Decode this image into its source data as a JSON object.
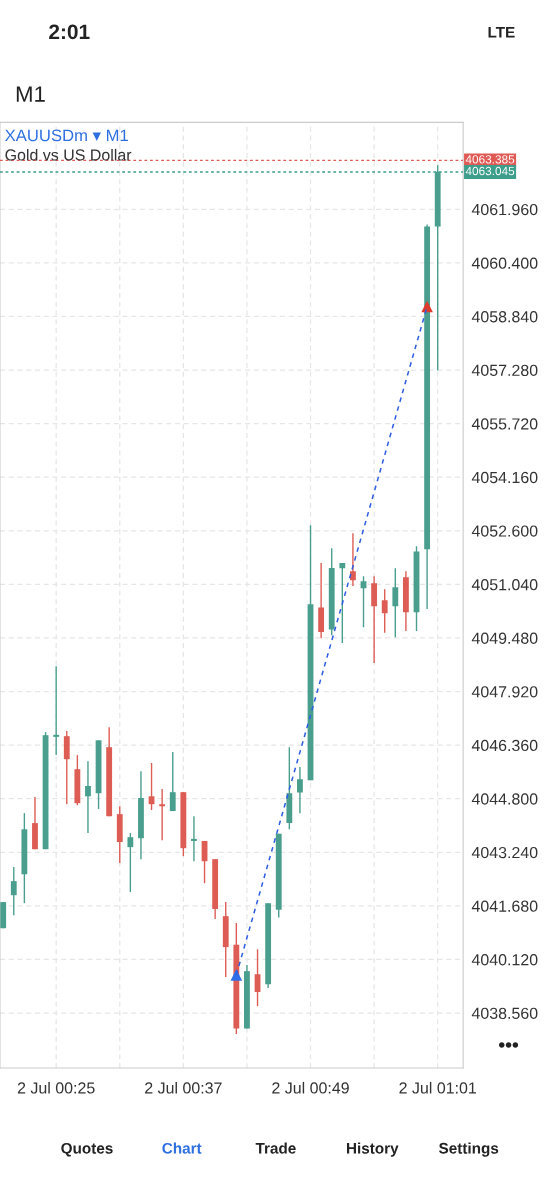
{
  "chart_data": {
    "type": "candlestick",
    "title": "XAUUSDm ▾ M1",
    "subtitle": "Gold vs US Dollar",
    "annotations": [
      "2:01",
      "LTE",
      "M1",
      "•••",
      "Quotes",
      "Chart",
      "Trade",
      "History",
      "Settings"
    ],
    "categories": [
      null,
      null,
      null,
      null,
      null,
      "2 Jul 00:25",
      null,
      null,
      null,
      null,
      null,
      null,
      null,
      null,
      null,
      null,
      null,
      "2 Jul 00:37",
      null,
      null,
      null,
      null,
      null,
      null,
      null,
      null,
      null,
      null,
      null,
      "2 Jul 00:49",
      null,
      null,
      null,
      null,
      null,
      null,
      null,
      null,
      null,
      null,
      null,
      "2 Jul 01:01"
    ],
    "ohlc": [
      [
        4041.03,
        4041.79,
        4041.03,
        4041.79
      ],
      [
        4041.99,
        4042.81,
        4041.41,
        4042.4
      ],
      [
        4042.6,
        4044.38,
        4041.76,
        4043.91
      ],
      [
        4044.09,
        4044.85,
        4043.33,
        4043.33
      ],
      [
        4043.33,
        4046.74,
        4043.33,
        4046.65
      ],
      [
        4046.6,
        4048.66,
        4046.07,
        4046.62
      ],
      [
        4046.62,
        4046.77,
        4044.64,
        4045.95
      ],
      [
        4045.66,
        4046.07,
        4044.61,
        4044.67
      ],
      [
        4044.87,
        4045.89,
        4043.8,
        4045.17
      ],
      [
        4044.96,
        4046.5,
        4044.5,
        4046.5
      ],
      [
        4046.3,
        4046.88,
        4044.29,
        4044.29
      ],
      [
        4044.35,
        4044.58,
        4042.93,
        4043.54
      ],
      [
        4043.39,
        4043.8,
        4042.08,
        4043.68
      ],
      [
        4043.65,
        4045.6,
        4043.04,
        4044.82
      ],
      [
        4044.87,
        4045.84,
        4044.47,
        4044.64
      ],
      [
        4044.6,
        4045.08,
        4043.59,
        4044.58
      ],
      [
        4044.44,
        4046.16,
        4044.44,
        4044.99
      ],
      [
        4044.99,
        4044.99,
        4043.13,
        4043.36
      ],
      [
        4043.57,
        4044.29,
        4042.98,
        4043.59
      ],
      [
        4043.57,
        4043.57,
        4042.34,
        4042.98
      ],
      [
        4043.04,
        4043.04,
        4041.3,
        4041.59
      ],
      [
        4041.38,
        4041.79,
        4039.61,
        4040.48
      ],
      [
        4040.55,
        4041.18,
        4037.95,
        4038.11
      ],
      [
        4038.11,
        4039.96,
        4038.11,
        4039.78
      ],
      [
        4039.69,
        4040.42,
        4038.76,
        4039.17
      ],
      [
        4039.4,
        4041.76,
        4039.29,
        4041.76
      ],
      [
        4041.57,
        4043.78,
        4041.34,
        4043.78
      ],
      [
        4044.09,
        4046.3,
        4043.91,
        4044.96
      ],
      [
        4044.98,
        4045.72,
        4044.38,
        4045.37
      ],
      [
        4045.34,
        4052.76,
        4045.34,
        4050.46
      ],
      [
        4050.37,
        4051.66,
        4049.47,
        4049.65
      ],
      [
        4049.73,
        4052.09,
        4049.56,
        4051.52
      ],
      [
        4051.51,
        4051.66,
        4049.33,
        4051.66
      ],
      [
        4051.42,
        4052.53,
        4050.99,
        4051.16
      ],
      [
        4050.93,
        4051.28,
        4049.79,
        4051.13
      ],
      [
        4051.07,
        4051.28,
        4048.75,
        4050.4
      ],
      [
        4050.58,
        4050.9,
        4049.63,
        4050.2
      ],
      [
        4050.4,
        4051.51,
        4049.5,
        4050.96
      ],
      [
        4051.25,
        4051.42,
        4049.68,
        4050.23
      ],
      [
        4050.23,
        4052.15,
        4049.68,
        4052.0
      ],
      [
        4052.06,
        4061.52,
        4050.32,
        4061.46
      ],
      [
        4061.46,
        4063.24,
        4057.27,
        4063.05
      ]
    ],
    "colors": [
      "#4a9e8e",
      "#4a9e8e",
      "#4a9e8e",
      "#dd5c54",
      "#4a9e8e",
      "#4a9e8e",
      "#dd5c54",
      "#dd5c54",
      "#4a9e8e",
      "#4a9e8e",
      "#dd5c54",
      "#dd5c54",
      "#4a9e8e",
      "#4a9e8e",
      "#dd5c54",
      "#dd5c54",
      "#4a9e8e",
      "#dd5c54",
      "#4a9e8e",
      "#dd5c54",
      "#dd5c54",
      "#dd5c54",
      "#dd5c54",
      "#4a9e8e",
      "#dd5c54",
      "#4a9e8e",
      "#4a9e8e",
      "#4a9e8e",
      "#4a9e8e",
      "#4a9e8e",
      "#dd5c54",
      "#4a9e8e",
      "#4a9e8e",
      "#dd5c54",
      "#4a9e8e",
      "#dd5c54",
      "#dd5c54",
      "#4a9e8e",
      "#dd5c54",
      "#4a9e8e",
      "#4a9e8e",
      "#4a9e8e"
    ],
    "series": [
      {
        "type": "line",
        "color": "#2f5fe0",
        "line_style": "dashed",
        "values": [
          null,
          null,
          null,
          null,
          null,
          null,
          null,
          null,
          null,
          null,
          null,
          null,
          null,
          null,
          null,
          null,
          null,
          null,
          null,
          null,
          null,
          null,
          4039.67,
          null,
          null,
          null,
          null,
          null,
          null,
          null,
          null,
          null,
          null,
          null,
          null,
          null,
          null,
          null,
          null,
          null,
          4059.13,
          null
        ]
      },
      {
        "type": "scatter",
        "color": "#2f6fe8",
        "marker": "triangle",
        "values": [
          null,
          null,
          null,
          null,
          null,
          null,
          null,
          null,
          null,
          null,
          null,
          null,
          null,
          null,
          null,
          null,
          null,
          null,
          null,
          null,
          null,
          null,
          4039.67,
          null,
          null,
          null,
          null,
          null,
          null,
          null,
          null,
          null,
          null,
          null,
          null,
          null,
          null,
          null,
          null,
          null,
          null,
          null
        ]
      },
      {
        "type": "scatter",
        "color": "#dd3c2c",
        "marker": "triangle",
        "values": [
          null,
          null,
          null,
          null,
          null,
          null,
          null,
          null,
          null,
          null,
          null,
          null,
          null,
          null,
          null,
          null,
          null,
          null,
          null,
          null,
          null,
          null,
          null,
          null,
          null,
          null,
          null,
          null,
          null,
          null,
          null,
          null,
          null,
          null,
          null,
          null,
          null,
          null,
          null,
          null,
          4059.13,
          null
        ]
      }
    ],
    "ref_lines": [
      {
        "axis": "y",
        "value": 4063.385,
        "label": "4063.385",
        "color": "#e05a55",
        "line_style": "dotted"
      },
      {
        "axis": "y",
        "value": 4063.045,
        "label": "4063.045",
        "color": "#3d9e8c",
        "line_style": "dotted"
      }
    ],
    "ylim": [
      4036.96,
      4064.49
    ],
    "yticks": [
      {
        "value": 4038.56,
        "label": "4038.560"
      },
      {
        "value": 4040.12,
        "label": "4040.120"
      },
      {
        "value": 4041.68,
        "label": "4041.680"
      },
      {
        "value": 4043.24,
        "label": "4043.240"
      },
      {
        "value": 4044.8,
        "label": "4044.800"
      },
      {
        "value": 4046.36,
        "label": "4046.360"
      },
      {
        "value": 4047.92,
        "label": "4047.920"
      },
      {
        "value": 4049.48,
        "label": "4049.480"
      },
      {
        "value": 4051.04,
        "label": "4051.040"
      },
      {
        "value": 4052.6,
        "label": "4052.600"
      },
      {
        "value": 4054.16,
        "label": "4054.160"
      },
      {
        "value": 4055.72,
        "label": "4055.720"
      },
      {
        "value": 4057.28,
        "label": "4057.280"
      },
      {
        "value": 4058.84,
        "label": "4058.840"
      },
      {
        "value": 4060.4,
        "label": "4060.400"
      },
      {
        "value": 4061.96,
        "label": "4061.960"
      }
    ],
    "grid": true,
    "legend": false
  }
}
